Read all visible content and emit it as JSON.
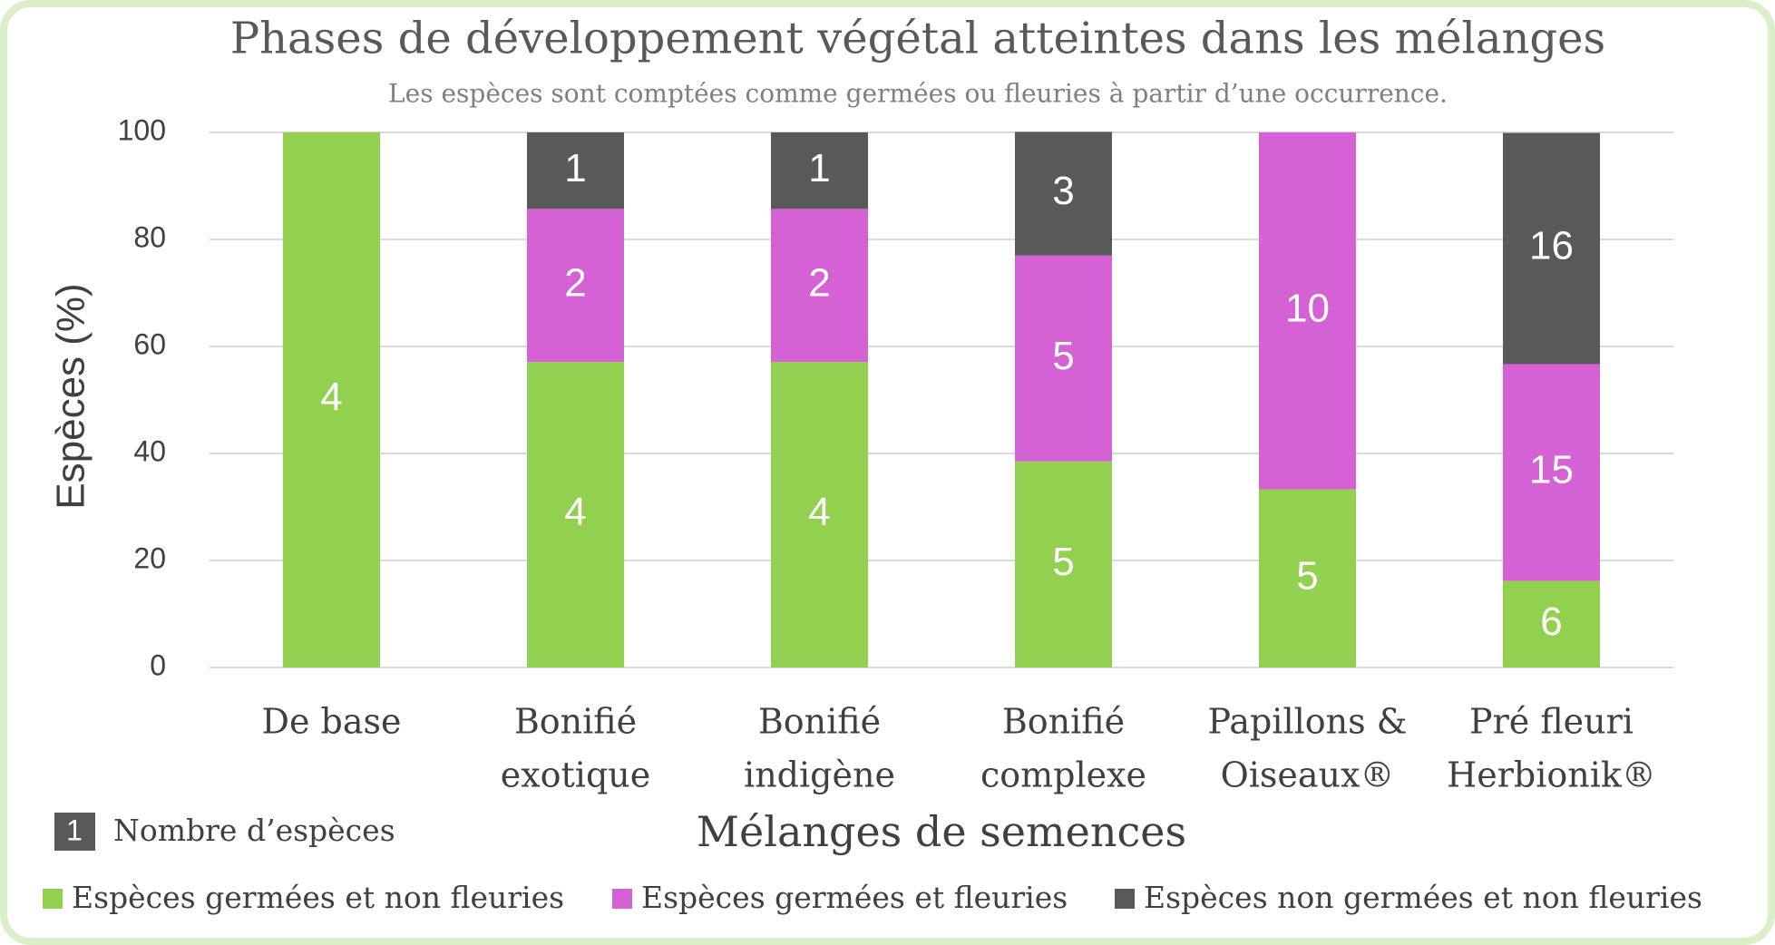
{
  "chart_data": {
    "type": "stacked_bar",
    "title": "Phases de développement végétal atteintes dans les mélanges",
    "subtitle": "Les espèces sont comptées comme germées ou fleuries à partir d’une occurrence.",
    "x_label": "Mélanges de semences",
    "y_label": "Espèces (%)",
    "categories": [
      [
        "De base"
      ],
      [
        "Bonifié",
        "exotique"
      ],
      [
        "Bonifié",
        "indigène"
      ],
      [
        "Bonifié",
        "complexe"
      ],
      [
        "Papillons &",
        "Oiseaux®"
      ],
      [
        "Pré fleuri",
        "Herbionik®"
      ]
    ],
    "series": [
      {
        "name": "Espèces germées et non fleuries",
        "color": "#92d050",
        "values": [
          100,
          57.1,
          57.1,
          38.5,
          33.3,
          16.2
        ],
        "counts": [
          4,
          4,
          4,
          5,
          5,
          6
        ]
      },
      {
        "name": "Espèces germées et fleuries",
        "color": "#d462d4",
        "values": [
          0,
          28.6,
          28.6,
          38.5,
          66.7,
          40.5
        ],
        "counts": [
          null,
          2,
          2,
          5,
          10,
          15
        ]
      },
      {
        "name": "Espèces non germées et non fleuries",
        "color": "#595959",
        "values": [
          0,
          14.3,
          14.3,
          23.1,
          0,
          43.2
        ],
        "counts": [
          null,
          1,
          1,
          3,
          null,
          16
        ]
      }
    ],
    "count_legend": {
      "sample": 1,
      "label": "Nombre d’espèces",
      "color": "#595959"
    },
    "ylim": [
      0,
      100
    ],
    "yticks": [
      0,
      20,
      40,
      60,
      80,
      100
    ],
    "grid": true,
    "legend": "bottom"
  }
}
